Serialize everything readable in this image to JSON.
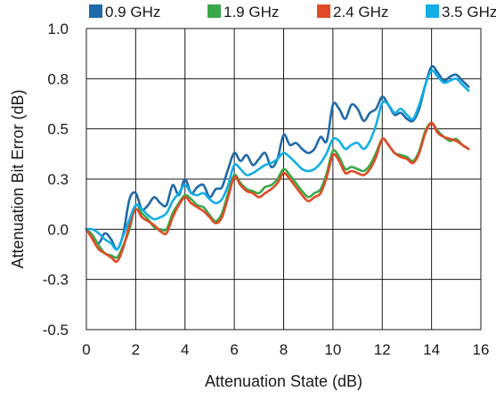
{
  "chart_data": {
    "type": "line",
    "title": "",
    "xlabel": "Attenuation State (dB)",
    "ylabel": "Attenuation Bit Error (dB)",
    "xlim": [
      0,
      16
    ],
    "ylim": [
      -0.5,
      1.0
    ],
    "x_ticks": [
      0,
      2,
      4,
      6,
      8,
      10,
      12,
      14,
      16
    ],
    "x_tick_labels": [
      "0",
      "2",
      "4",
      "6",
      "8",
      "10",
      "12",
      "14",
      "16"
    ],
    "y_ticks": [
      -0.5,
      -0.25,
      0.0,
      0.25,
      0.5,
      0.75,
      1.0
    ],
    "y_tick_labels": [
      "-0.5",
      "-0.3",
      "0.0",
      "0.3",
      "0.5",
      "0.8",
      "1.0"
    ],
    "grid": true,
    "legend_position": "top",
    "x": [
      0,
      0.25,
      0.5,
      0.75,
      1,
      1.25,
      1.5,
      1.75,
      2,
      2.25,
      2.5,
      2.75,
      3,
      3.25,
      3.5,
      3.75,
      4,
      4.25,
      4.5,
      4.75,
      5,
      5.25,
      5.5,
      5.75,
      6,
      6.25,
      6.5,
      6.75,
      7,
      7.25,
      7.5,
      7.75,
      8,
      8.25,
      8.5,
      8.75,
      9,
      9.25,
      9.5,
      9.75,
      10,
      10.25,
      10.5,
      10.75,
      11,
      11.25,
      11.5,
      11.75,
      12,
      12.25,
      12.5,
      12.75,
      13,
      13.25,
      13.5,
      13.75,
      14,
      14.25,
      14.5,
      14.75,
      15,
      15.25,
      15.5
    ],
    "series": [
      {
        "name": "0.9 GHz",
        "color": "#1f6aa8",
        "values": [
          0.0,
          -0.04,
          -0.07,
          -0.02,
          -0.05,
          -0.1,
          -0.02,
          0.15,
          0.18,
          0.1,
          0.12,
          0.16,
          0.13,
          0.12,
          0.22,
          0.17,
          0.25,
          0.18,
          0.21,
          0.22,
          0.16,
          0.2,
          0.21,
          0.3,
          0.38,
          0.34,
          0.37,
          0.32,
          0.35,
          0.38,
          0.31,
          0.35,
          0.47,
          0.42,
          0.43,
          0.4,
          0.38,
          0.4,
          0.46,
          0.44,
          0.62,
          0.6,
          0.55,
          0.62,
          0.6,
          0.54,
          0.58,
          0.6,
          0.66,
          0.62,
          0.57,
          0.58,
          0.55,
          0.54,
          0.6,
          0.72,
          0.81,
          0.78,
          0.74,
          0.76,
          0.77,
          0.74,
          0.71
        ]
      },
      {
        "name": "1.9 GHz",
        "color": "#3aa84a",
        "values": [
          0.0,
          -0.03,
          -0.08,
          -0.12,
          -0.13,
          -0.14,
          -0.08,
          0.0,
          0.12,
          0.08,
          0.05,
          0.01,
          0.0,
          0.0,
          0.08,
          0.13,
          0.17,
          0.15,
          0.12,
          0.11,
          0.07,
          0.04,
          0.08,
          0.18,
          0.27,
          0.23,
          0.2,
          0.19,
          0.18,
          0.21,
          0.22,
          0.25,
          0.3,
          0.27,
          0.23,
          0.19,
          0.16,
          0.18,
          0.2,
          0.28,
          0.39,
          0.36,
          0.3,
          0.31,
          0.3,
          0.29,
          0.32,
          0.38,
          0.45,
          0.42,
          0.38,
          0.37,
          0.36,
          0.34,
          0.39,
          0.49,
          0.53,
          0.49,
          0.46,
          0.44,
          0.45,
          0.42,
          0.4
        ]
      },
      {
        "name": "2.4 GHz",
        "color": "#e04a24",
        "values": [
          0.0,
          -0.05,
          -0.1,
          -0.12,
          -0.14,
          -0.16,
          -0.09,
          0.02,
          0.1,
          0.06,
          0.04,
          0.02,
          -0.01,
          -0.02,
          0.06,
          0.12,
          0.16,
          0.13,
          0.11,
          0.09,
          0.06,
          0.03,
          0.06,
          0.16,
          0.26,
          0.22,
          0.19,
          0.18,
          0.16,
          0.18,
          0.2,
          0.23,
          0.28,
          0.25,
          0.21,
          0.17,
          0.14,
          0.16,
          0.18,
          0.26,
          0.37,
          0.34,
          0.28,
          0.29,
          0.28,
          0.27,
          0.3,
          0.36,
          0.45,
          0.42,
          0.38,
          0.36,
          0.35,
          0.33,
          0.38,
          0.48,
          0.53,
          0.48,
          0.46,
          0.45,
          0.44,
          0.42,
          0.4
        ]
      },
      {
        "name": "3.5 GHz",
        "color": "#12aee6",
        "values": [
          0.0,
          0.0,
          -0.02,
          -0.05,
          -0.07,
          -0.1,
          -0.03,
          0.05,
          0.12,
          0.1,
          0.07,
          0.05,
          0.06,
          0.08,
          0.14,
          0.18,
          0.22,
          0.18,
          0.17,
          0.18,
          0.15,
          0.13,
          0.15,
          0.22,
          0.32,
          0.3,
          0.27,
          0.28,
          0.3,
          0.32,
          0.33,
          0.35,
          0.38,
          0.36,
          0.33,
          0.3,
          0.29,
          0.3,
          0.33,
          0.38,
          0.45,
          0.44,
          0.4,
          0.42,
          0.43,
          0.4,
          0.44,
          0.52,
          0.63,
          0.62,
          0.58,
          0.6,
          0.57,
          0.55,
          0.62,
          0.72,
          0.79,
          0.76,
          0.73,
          0.74,
          0.75,
          0.72,
          0.69
        ]
      }
    ]
  }
}
